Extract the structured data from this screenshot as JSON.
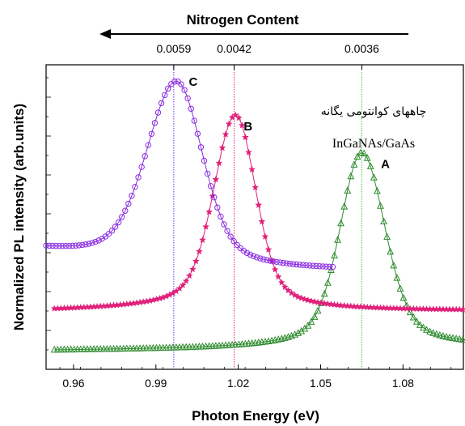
{
  "chart_data": {
    "type": "scatter",
    "xlabel": "Photon Energy (eV)",
    "ylabel": "Normalized PL intensity (arb.units)",
    "xlim": [
      0.95,
      1.102
    ],
    "ylim": [
      0,
      1.3
    ],
    "x_ticks": [
      0.96,
      0.99,
      1.02,
      1.05,
      1.08
    ],
    "top_axis": {
      "label": "Nitrogen Content",
      "direction": "right-to-left arrow",
      "ticks": [
        {
          "x": 0.9965,
          "label": "0.0059"
        },
        {
          "x": 1.0185,
          "label": "0.0042"
        },
        {
          "x": 1.065,
          "label": "0.0036"
        }
      ]
    },
    "annotation": {
      "line1": "چاههای کوانتومی یگانه",
      "line2": "InGaNAs/GaAs"
    },
    "series": [
      {
        "name": "A",
        "color": "#2e8b2e",
        "marker": "triangle",
        "x_range": [
          0.953,
          1.102
        ],
        "peak_x": 1.065,
        "peak_y": 0.925,
        "baseline_start": 0.08,
        "baseline_end": 0.09,
        "width_left": 0.0075,
        "width_right": 0.008,
        "tail_end": 0.095,
        "label_at": [
          1.072,
          0.86
        ]
      },
      {
        "name": "B",
        "color": "#e0207a",
        "marker": "star",
        "x_range": [
          0.953,
          1.102
        ],
        "peak_x": 1.019,
        "peak_y": 1.085,
        "baseline_start": 0.25,
        "baseline_end": 0.26,
        "width_left": 0.0075,
        "width_right": 0.007,
        "tail_end": 0.25,
        "label_at": [
          1.022,
          1.02
        ]
      },
      {
        "name": "C",
        "color": "#8a2be2",
        "marker": "circle",
        "x_range": [
          0.95,
          1.055
        ],
        "peak_x": 0.9975,
        "peak_y": 1.23,
        "baseline_start": 0.5,
        "baseline_end": 0.42,
        "width_left": 0.0105,
        "width_right": 0.009,
        "tail_end": 0.42,
        "label_at": [
          1.002,
          1.21
        ]
      }
    ],
    "vertical_lines": [
      {
        "x": 0.9965,
        "color": "#6a30e8"
      },
      {
        "x": 1.0185,
        "color": "#e0207a"
      },
      {
        "x": 1.065,
        "color": "#33cc33"
      }
    ]
  }
}
